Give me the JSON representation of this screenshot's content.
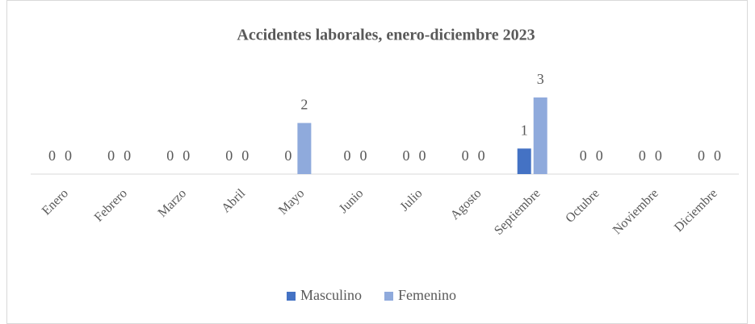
{
  "chart_data": {
    "type": "bar",
    "title": "Accidentes laborales, enero-diciembre 2023",
    "categories": [
      "Enero",
      "Febrero",
      "Marzo",
      "Abril",
      "Mayo",
      "Junio",
      "Julio",
      "Agosto",
      "Septiembre",
      "Octubre",
      "Noviembre",
      "Diciembre"
    ],
    "series": [
      {
        "name": "Masculino",
        "color": "#4472c4",
        "values": [
          0,
          0,
          0,
          0,
          0,
          0,
          0,
          0,
          1,
          0,
          0,
          0
        ]
      },
      {
        "name": "Femenino",
        "color": "#8faadc",
        "values": [
          0,
          0,
          0,
          0,
          2,
          0,
          0,
          0,
          3,
          0,
          0,
          0
        ]
      }
    ],
    "legend": "bottom"
  }
}
